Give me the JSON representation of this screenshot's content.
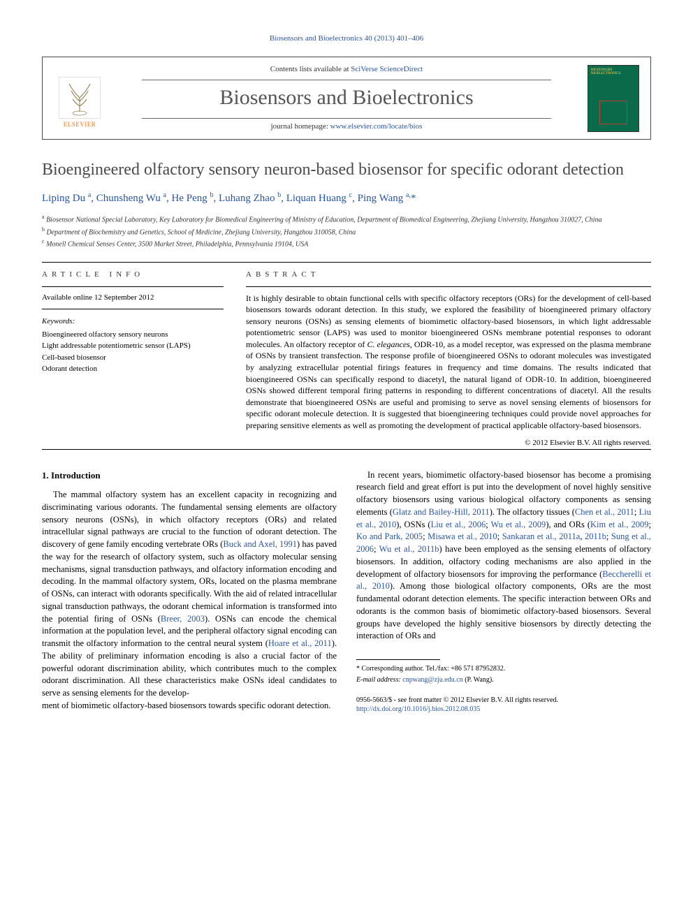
{
  "running_head": "Biosensors and Bioelectronics 40 (2013) 401–406",
  "header": {
    "contents_prefix": "Contents lists available at ",
    "contents_link": "SciVerse ScienceDirect",
    "journal": "Biosensors and Bioelectronics",
    "homepage_prefix": "journal homepage: ",
    "homepage_link": "www.elsevier.com/locate/bios",
    "publisher_word": "ELSEVIER",
    "cover_label": "BIOSENSORS BIOELECTRONICS"
  },
  "title": "Bioengineered olfactory sensory neuron-based biosensor for specific odorant detection",
  "authors_html": "Liping Du <sup>a</sup>, Chunsheng Wu <sup>a</sup>, He Peng <sup>b</sup>, Luhang Zhao <sup>b</sup>, Liquan Huang <sup>c</sup>, Ping Wang <sup>a,</sup>*",
  "affiliations": [
    {
      "sup": "a",
      "text": "Biosensor National Special Laboratory, Key Laboratory for Biomedical Engineering of Ministry of Education, Department of Biomedical Engineering, Zhejiang University, Hangzhou 310027, China"
    },
    {
      "sup": "b",
      "text": "Department of Biochemistry and Genetics, School of Medicine, Zhejiang University, Hangzhou 310058, China"
    },
    {
      "sup": "c",
      "text": "Monell Chemical Senses Center, 3500 Market Street, Philadelphia, Pennsylvania 19104, USA"
    }
  ],
  "article_info": {
    "head": "ARTICLE INFO",
    "history": "Available online 12 September 2012",
    "keywords_head": "Keywords:",
    "keywords": [
      "Bioengineered olfactory sensory neurons",
      "Light addressable potentiometric sensor (LAPS)",
      "Cell-based biosensor",
      "Odorant detection"
    ]
  },
  "abstract": {
    "head": "ABSTRACT",
    "text": "It is highly desirable to obtain functional cells with specific olfactory receptors (ORs) for the development of cell-based biosensors towards odorant detection. In this study, we explored the feasibility of bioengineered primary olfactory sensory neurons (OSNs) as sensing elements of biomimetic olfactory-based biosensors, in which light addressable potentiometric sensor (LAPS) was used to monitor bioengineered OSNs membrane potential responses to odorant molecules. An olfactory receptor of C. elegances, ODR-10, as a model receptor, was expressed on the plasma membrane of OSNs by transient transfection. The response profile of bioengineered OSNs to odorant molecules was investigated by analyzing extracellular potential firings features in frequency and time domains. The results indicated that bioengineered OSNs can specifically respond to diacetyl, the natural ligand of ODR-10. In addition, bioengineered OSNs showed different temporal firing patterns in responding to different concentrations of diacetyl. All the results demonstrate that bioengineered OSNs are useful and promising to serve as novel sensing elements of biosensors for specific odorant molecule detection. It is suggested that bioengineering techniques could provide novel approaches for preparing sensitive elements as well as promoting the development of practical applicable olfactory-based biosensors.",
    "copyright": "© 2012 Elsevier B.V. All rights reserved."
  },
  "intro": {
    "heading": "1.  Introduction",
    "p1_a": "The mammal olfactory system has an excellent capacity in recognizing and discriminating various odorants. The fundamental sensing elements are olfactory sensory neurons (OSNs), in which olfactory receptors (ORs) and related intracellular signal pathways are crucial to the function of odorant detection. The discovery of gene family encoding vertebrate ORs (",
    "p1_link1": "Buck and Axel, 1991",
    "p1_b": ") has paved the way for the research of olfactory system, such as olfactory molecular sensing mechanisms, signal transduction pathways, and olfactory information encoding and decoding. In the mammal olfactory system, ORs, located on the plasma membrane of OSNs, can interact with odorants specifically. With the aid of related intracellular signal transduction pathways, the odorant chemical information is transformed into the potential firing of OSNs (",
    "p1_link2": "Breer, 2003",
    "p1_c": "). OSNs can encode the chemical information at the population level, and the peripheral olfactory signal encoding can transmit the olfactory information to the central neural system (",
    "p1_link3": "Hoare et al., 2011",
    "p1_d": "). The ability of preliminary information encoding is also a crucial factor of the powerful odorant discrimination ability, which contributes much to the complex odorant discrimination. All these characteristics make OSNs ideal candidates to serve as sensing elements for the develop-",
    "p1_e": "ment of biomimetic olfactory-based biosensors towards specific odorant detection.",
    "p2_a": "In recent years, biomimetic olfactory-based biosensor has become a promising research field and great effort is put into the development of novel highly sensitive olfactory biosensors using various biological olfactory components as sensing elements (",
    "p2_link1": "Glatz and Bailey-Hill, 2011",
    "p2_b": "). The olfactory tissues (",
    "p2_link2": "Chen et al., 2011",
    "p2_c": "; ",
    "p2_link3": "Liu et al., 2010",
    "p2_d": "), OSNs (",
    "p2_link4": "Liu et al., 2006",
    "p2_e": "; ",
    "p2_link5": "Wu et al., 2009",
    "p2_f": "), and ORs (",
    "p2_link6": "Kim et al., 2009",
    "p2_g": "; ",
    "p2_link7": "Ko and Park, 2005",
    "p2_h": "; ",
    "p2_link8": "Misawa et al., 2010",
    "p2_i": "; ",
    "p2_link9": "Sankaran et al., 2011a",
    "p2_j": ", ",
    "p2_link10": "2011b",
    "p2_k": "; ",
    "p2_link11": "Sung et al., 2006",
    "p2_l": "; ",
    "p2_link12": "Wu et al., 2011b",
    "p2_m": ") have been employed as the sensing elements of olfactory biosensors. In addition, olfactory coding mechanisms are also applied in the development of olfactory biosensors for improving the performance (",
    "p2_link13": "Beccherelli et al., 2010",
    "p2_n": "). Among those biological olfactory components, ORs are the most fundamental odorant detection elements. The specific interaction between ORs and odorants is the common basis of biomimetic olfactory-based biosensors. Several groups have developed the highly sensitive biosensors by directly detecting the interaction of ORs and"
  },
  "footer": {
    "corr_label": "* Corresponding author. Tel./fax: ",
    "corr_phone": "+86 571 87952832.",
    "email_label": "E-mail address: ",
    "email": "cnpwang@zju.edu.cn",
    "email_suffix": " (P. Wang).",
    "issn": "0956-5663/$ - see front matter © 2012 Elsevier B.V. All rights reserved.",
    "doi": "http://dx.doi.org/10.1016/j.bios.2012.08.035"
  },
  "colors": {
    "link": "#2a5599",
    "text": "#000000",
    "title_gray": "#4a4a4a",
    "elsevier_orange": "#e67817",
    "cover_green": "#0a6b4a"
  }
}
